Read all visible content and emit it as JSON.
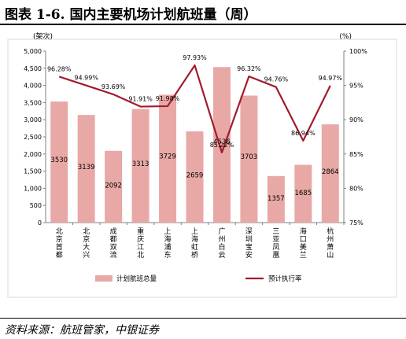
{
  "page": {
    "title": "图表 1-6. 国内主要机场计划航班量（周）",
    "source": "资料来源：航班管家，中银证券"
  },
  "chart_data": {
    "type": "bar",
    "categories": [
      "北京首都",
      "北京大兴",
      "成都双流",
      "重庆江北",
      "上海浦东",
      "上海虹桥",
      "广州白云",
      "深圳宝安",
      "三亚凤凰",
      "海口美兰",
      "杭州萧山"
    ],
    "series": [
      {
        "name": "计划航班总量",
        "type": "bar",
        "axis": "left",
        "color": "#e8a9a6",
        "values": [
          3530,
          3139,
          2092,
          3313,
          3729,
          2659,
          4536,
          3703,
          1357,
          1685,
          2864
        ]
      },
      {
        "name": "预计执行率",
        "type": "line",
        "axis": "right",
        "color": "#a01c2c",
        "values": [
          96.28,
          94.99,
          93.69,
          91.91,
          91.98,
          97.93,
          85.22,
          96.32,
          94.76,
          86.94,
          94.97
        ],
        "labels": [
          "96.28%",
          "94.99%",
          "93.69%",
          "91.91%",
          "91.98%",
          "97.93%",
          "85.22%",
          "96.32%",
          "94.76%",
          "86.94%",
          "94.97%"
        ]
      }
    ],
    "bar_labels": [
      "3530",
      "3139",
      "2092",
      "3313",
      "3729",
      "2659",
      "4536",
      "3703",
      "1357",
      "1685",
      "2864"
    ],
    "y_left": {
      "unit": "(架次)",
      "min": 0,
      "max": 5000,
      "ticks": [
        "0",
        "500",
        "1,000",
        "1,500",
        "2,000",
        "2,500",
        "3,000",
        "3,500",
        "4,000",
        "4,500",
        "5,000"
      ]
    },
    "y_right": {
      "unit": "(%)",
      "min": 75,
      "max": 100,
      "ticks": [
        "75%",
        "80%",
        "85%",
        "90%",
        "95%",
        "100%"
      ]
    },
    "legend": {
      "position": "bottom"
    },
    "grid": false
  }
}
